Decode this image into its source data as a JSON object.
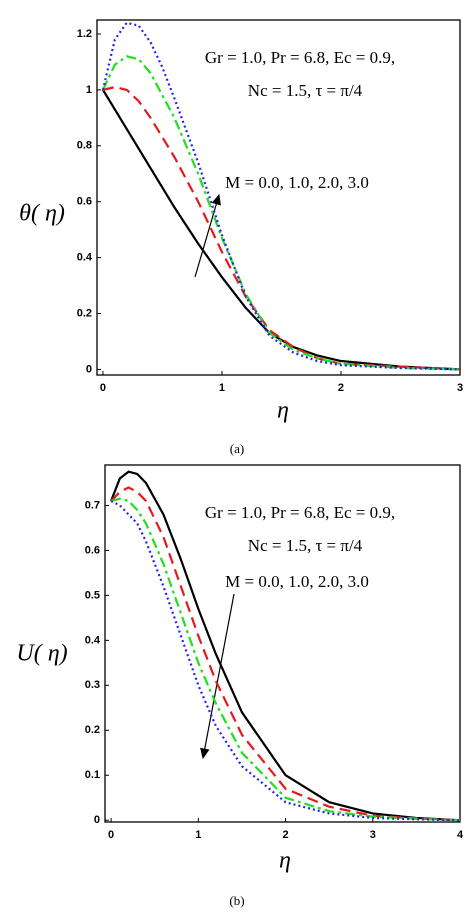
{
  "chart_data": [
    {
      "type": "line",
      "caption": "(a)",
      "xlabel": "η",
      "ylabel": "θ( η)",
      "annotations": [
        "Gr = 1.0, Pr = 6.8, Ec = 0.9,",
        "Nc = 1.5, τ = π/4",
        "M = 0.0, 1.0, 2.0, 3.0"
      ],
      "x": [
        0,
        0.1,
        0.2,
        0.3,
        0.4,
        0.5,
        0.6,
        0.8,
        1.0,
        1.2,
        1.4,
        1.6,
        1.8,
        2.0,
        2.5,
        3.0
      ],
      "xlim": [
        -0.05,
        3
      ],
      "ylim": [
        -0.02,
        1.25
      ],
      "xticks": [
        0,
        1,
        2,
        3
      ],
      "yticks": [
        0,
        0.2,
        0.4,
        0.6,
        0.8,
        1,
        1.2
      ],
      "grid": false,
      "series": [
        {
          "color": "#000000",
          "dash": "solid",
          "values": [
            1,
            0.93,
            0.86,
            0.79,
            0.72,
            0.65,
            0.58,
            0.45,
            0.33,
            0.22,
            0.13,
            0.08,
            0.05,
            0.03,
            0.01,
            0
          ]
        },
        {
          "color": "#e41a1c",
          "dash": "dashed",
          "values": [
            1,
            1.01,
            1.0,
            0.96,
            0.9,
            0.83,
            0.76,
            0.6,
            0.42,
            0.26,
            0.14,
            0.08,
            0.04,
            0.02,
            0.01,
            0
          ]
        },
        {
          "color": "#22dd22",
          "dash": "dashdot",
          "values": [
            1,
            1.09,
            1.12,
            1.11,
            1.06,
            0.98,
            0.9,
            0.7,
            0.47,
            0.27,
            0.13,
            0.07,
            0.04,
            0.02,
            0.005,
            0
          ]
        },
        {
          "color": "#2222ee",
          "dash": "dotted",
          "values": [
            1,
            1.18,
            1.24,
            1.23,
            1.17,
            1.08,
            0.97,
            0.74,
            0.48,
            0.26,
            0.12,
            0.06,
            0.03,
            0.015,
            0.005,
            0
          ]
        }
      ]
    },
    {
      "type": "line",
      "caption": "(b)",
      "xlabel": "η",
      "ylabel": "U( η)",
      "annotations": [
        "Gr = 1.0, Pr = 6.8, Ec = 0.9,",
        "Nc = 1.5, τ = π/4",
        "M = 0.0, 1.0, 2.0, 3.0"
      ],
      "x": [
        0,
        0.1,
        0.2,
        0.3,
        0.4,
        0.6,
        0.8,
        1.0,
        1.2,
        1.5,
        2.0,
        2.5,
        3.0,
        3.5,
        4.0
      ],
      "xlim": [
        -0.07,
        4
      ],
      "ylim": [
        -0.004,
        0.79
      ],
      "xticks": [
        0,
        1,
        2,
        3,
        4
      ],
      "yticks": [
        0,
        0.1,
        0.2,
        0.3,
        0.4,
        0.5,
        0.6,
        0.7
      ],
      "grid": false,
      "series": [
        {
          "color": "#000000",
          "dash": "solid",
          "values": [
            0.71,
            0.76,
            0.775,
            0.77,
            0.75,
            0.68,
            0.58,
            0.47,
            0.37,
            0.24,
            0.1,
            0.04,
            0.015,
            0.005,
            0
          ]
        },
        {
          "color": "#e41a1c",
          "dash": "dashed",
          "values": [
            0.71,
            0.73,
            0.74,
            0.73,
            0.71,
            0.63,
            0.52,
            0.41,
            0.31,
            0.19,
            0.07,
            0.03,
            0.01,
            0.004,
            0
          ]
        },
        {
          "color": "#22dd22",
          "dash": "dashdot",
          "values": [
            0.71,
            0.715,
            0.71,
            0.69,
            0.66,
            0.57,
            0.46,
            0.35,
            0.26,
            0.15,
            0.05,
            0.02,
            0.008,
            0.003,
            0
          ]
        },
        {
          "color": "#2222ee",
          "dash": "dotted",
          "values": [
            0.71,
            0.7,
            0.68,
            0.66,
            0.62,
            0.52,
            0.41,
            0.3,
            0.21,
            0.12,
            0.04,
            0.015,
            0.005,
            0.002,
            0
          ]
        }
      ]
    }
  ]
}
